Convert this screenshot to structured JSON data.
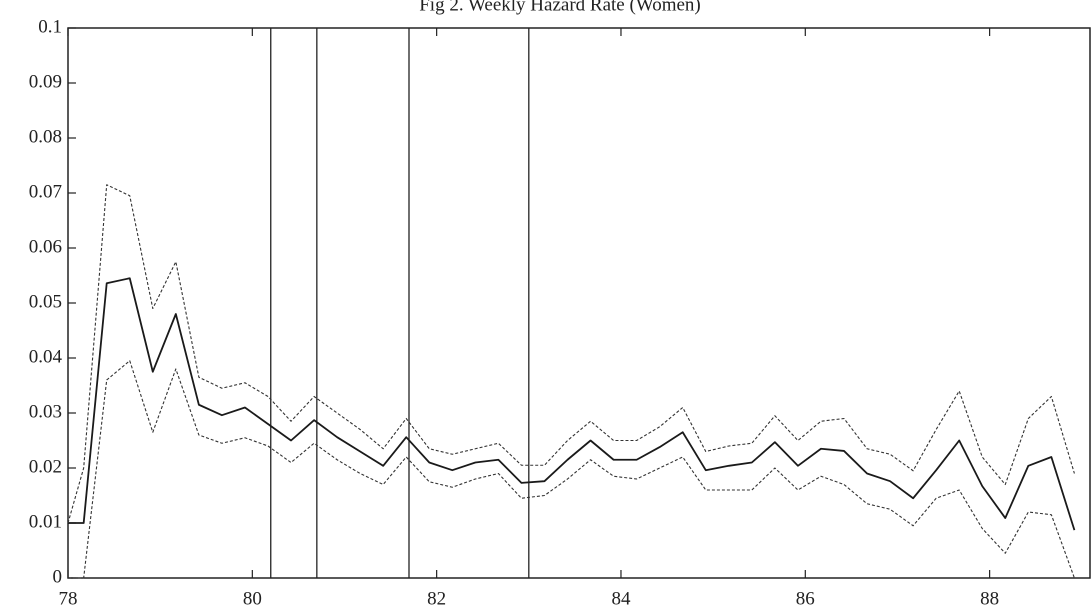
{
  "chart_data": {
    "type": "line",
    "title": "Fig 2. Weekly Hazard Rate (Women)",
    "x": [
      78.0,
      78.17,
      78.42,
      78.67,
      78.92,
      79.17,
      79.42,
      79.67,
      79.92,
      80.17,
      80.42,
      80.67,
      80.92,
      81.17,
      81.42,
      81.67,
      81.92,
      82.17,
      82.42,
      82.67,
      82.92,
      83.17,
      83.42,
      83.67,
      83.92,
      84.17,
      84.42,
      84.67,
      84.92,
      85.17,
      85.42,
      85.67,
      85.92,
      86.17,
      86.42,
      86.67,
      86.92,
      87.17,
      87.42,
      87.67,
      87.92,
      88.17,
      88.42,
      88.67,
      88.92
    ],
    "series": [
      {
        "color": "#1a1a1a",
        "style": "solid",
        "values": [
          0.01,
          0.01,
          0.0536,
          0.0545,
          0.0375,
          0.048,
          0.0315,
          0.0296,
          0.031,
          0.028,
          0.025,
          0.0287,
          0.0256,
          0.023,
          0.0204,
          0.0256,
          0.021,
          0.0196,
          0.021,
          0.0215,
          0.0173,
          0.0176,
          0.0215,
          0.025,
          0.0215,
          0.0215,
          0.0238,
          0.0265,
          0.0196,
          0.0204,
          0.021,
          0.0247,
          0.0204,
          0.0235,
          0.0231,
          0.019,
          0.0176,
          0.0145,
          0.0196,
          0.025,
          0.0167,
          0.0109,
          0.0204,
          0.022,
          0.0087
        ]
      },
      {
        "color": "#333333",
        "style": "dashed",
        "values": [
          0.01,
          0.02,
          0.0715,
          0.0695,
          0.049,
          0.0575,
          0.0365,
          0.0345,
          0.0355,
          0.033,
          0.0285,
          0.033,
          0.03,
          0.027,
          0.0235,
          0.029,
          0.0235,
          0.0225,
          0.0235,
          0.0245,
          0.0205,
          0.0205,
          0.025,
          0.0285,
          0.025,
          0.025,
          0.0275,
          0.031,
          0.023,
          0.024,
          0.0245,
          0.0295,
          0.025,
          0.0285,
          0.029,
          0.0235,
          0.0225,
          0.0195,
          0.027,
          0.034,
          0.022,
          0.017,
          0.029,
          0.033,
          0.019
        ]
      },
      {
        "color": "#333333",
        "style": "dashed",
        "values": [
          0,
          0,
          0.036,
          0.0395,
          0.0265,
          0.038,
          0.026,
          0.0245,
          0.0255,
          0.024,
          0.021,
          0.0245,
          0.0215,
          0.019,
          0.017,
          0.022,
          0.0175,
          0.0165,
          0.018,
          0.019,
          0.0145,
          0.015,
          0.018,
          0.0215,
          0.0185,
          0.018,
          0.02,
          0.022,
          0.016,
          0.016,
          0.016,
          0.02,
          0.016,
          0.0185,
          0.017,
          0.0135,
          0.0125,
          0.0095,
          0.0145,
          0.016,
          0.009,
          0.0045,
          0.012,
          0.0115,
          0
        ]
      }
    ],
    "vlines": [
      80.2,
      80.7,
      81.7,
      83.0
    ],
    "xlim": [
      78,
      89.1
    ],
    "xticks": [
      78,
      80,
      82,
      84,
      86,
      88
    ],
    "ylim": [
      0,
      0.1
    ],
    "yticks": [
      0,
      0.01,
      0.02,
      0.03,
      0.04,
      0.05,
      0.06,
      0.07,
      0.08,
      0.09,
      0.1
    ],
    "grid": false
  }
}
